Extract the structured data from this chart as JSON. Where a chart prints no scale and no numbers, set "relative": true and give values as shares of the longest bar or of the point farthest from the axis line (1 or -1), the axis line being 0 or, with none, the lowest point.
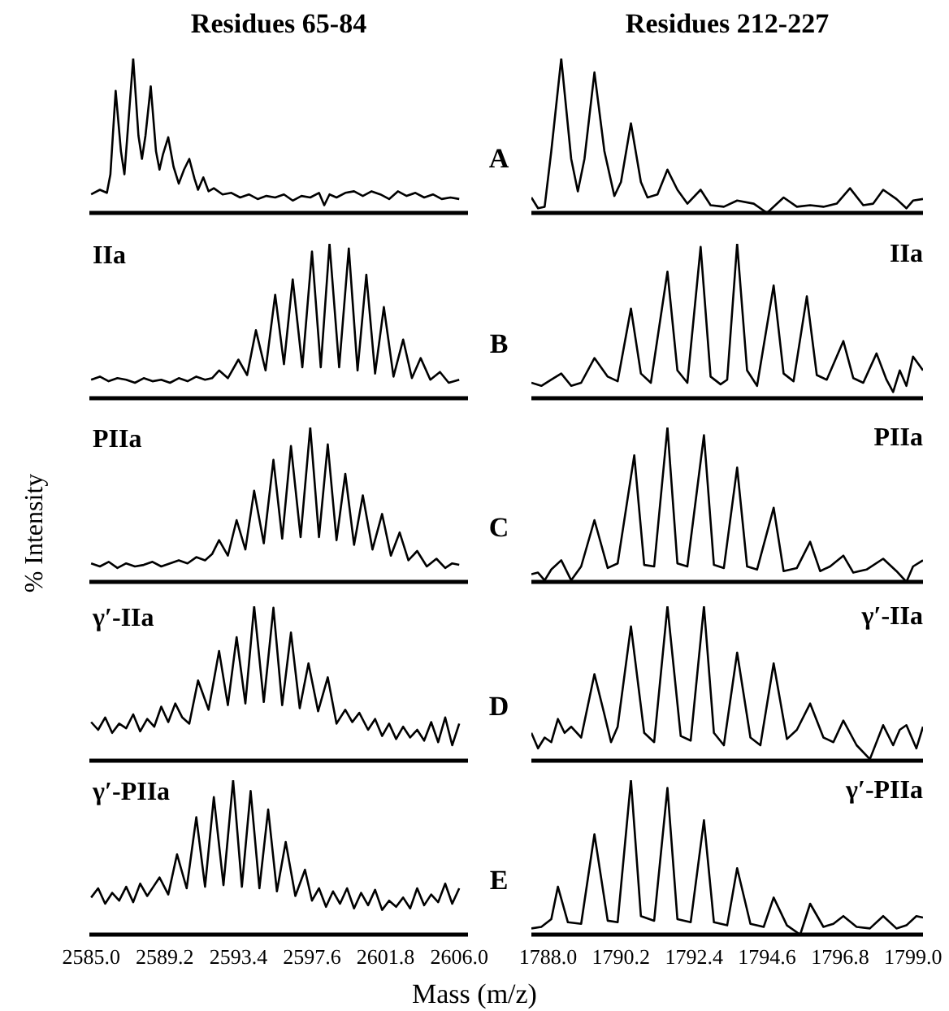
{
  "chart_data": [
    {
      "type": "line",
      "title": "Residues 65-84",
      "color": "#000000",
      "relative": true,
      "tick_labels": false,
      "xlim": [
        2584.9,
        2606.5
      ],
      "x": [
        2585,
        2585.5,
        2585.9,
        2586.1,
        2586.4,
        2586.7,
        2586.9,
        2587.1,
        2587.4,
        2587.7,
        2587.9,
        2588.1,
        2588.4,
        2588.7,
        2588.9,
        2589.1,
        2589.4,
        2589.7,
        2590,
        2590.3,
        2590.6,
        2590.9,
        2591.1,
        2591.4,
        2591.7,
        2592,
        2592.5,
        2593,
        2593.5,
        2594,
        2594.5,
        2595,
        2595.5,
        2596,
        2596.5,
        2597,
        2597.5,
        2598,
        2598.3,
        2598.6,
        2599,
        2599.5,
        2600,
        2600.5,
        2601,
        2601.5,
        2602,
        2602.5,
        2603,
        2603.5,
        2604,
        2604.5,
        2605,
        2605.5,
        2606
      ],
      "values": [
        0.12,
        0.15,
        0.13,
        0.25,
        0.79,
        0.4,
        0.25,
        0.55,
        1.0,
        0.5,
        0.35,
        0.5,
        0.82,
        0.4,
        0.28,
        0.38,
        0.49,
        0.3,
        0.19,
        0.28,
        0.35,
        0.22,
        0.15,
        0.23,
        0.14,
        0.16,
        0.12,
        0.13,
        0.1,
        0.12,
        0.09,
        0.11,
        0.1,
        0.12,
        0.08,
        0.11,
        0.1,
        0.13,
        0.05,
        0.12,
        0.1,
        0.13,
        0.14,
        0.11,
        0.14,
        0.12,
        0.09,
        0.14,
        0.11,
        0.13,
        0.1,
        0.12,
        0.09,
        0.1,
        0.09
      ]
    },
    {
      "type": "line",
      "title": "Residues 212-227",
      "annotations": [
        "A"
      ],
      "color": "#000000",
      "relative": true,
      "tick_labels": false,
      "xlim": [
        1787.5,
        1799.3
      ],
      "x": [
        1787.5,
        1787.7,
        1787.9,
        1788.1,
        1788.4,
        1788.7,
        1788.9,
        1789.1,
        1789.4,
        1789.7,
        1790,
        1790.2,
        1790.5,
        1790.8,
        1791,
        1791.3,
        1791.6,
        1791.9,
        1792.2,
        1792.6,
        1792.9,
        1793.3,
        1793.7,
        1794.2,
        1794.6,
        1795.1,
        1795.5,
        1795.9,
        1796.3,
        1796.7,
        1797.1,
        1797.5,
        1797.8,
        1798.1,
        1798.5,
        1798.8,
        1799,
        1799.3
      ],
      "values": [
        0.1,
        0.03,
        0.04,
        0.4,
        1.0,
        0.35,
        0.14,
        0.35,
        0.91,
        0.4,
        0.11,
        0.2,
        0.58,
        0.2,
        0.1,
        0.12,
        0.28,
        0.15,
        0.06,
        0.15,
        0.05,
        0.04,
        0.08,
        0.06,
        0.0,
        0.1,
        0.04,
        0.05,
        0.04,
        0.06,
        0.16,
        0.05,
        0.06,
        0.15,
        0.09,
        0.03,
        0.08,
        0.09
      ]
    },
    {
      "type": "line",
      "annotations": [
        "IIa"
      ],
      "color": "#000000",
      "relative": true,
      "tick_labels": false,
      "xlim": [
        2584.9,
        2606.5
      ],
      "x": [
        2585,
        2585.5,
        2586,
        2586.5,
        2587,
        2587.5,
        2588,
        2588.5,
        2589,
        2589.5,
        2590,
        2590.5,
        2591,
        2591.5,
        2591.9,
        2592.3,
        2592.8,
        2593.4,
        2593.9,
        2594.4,
        2594.95,
        2595.5,
        2596,
        2596.5,
        2597.05,
        2597.6,
        2598.1,
        2598.6,
        2599.15,
        2599.7,
        2600.2,
        2600.7,
        2601.2,
        2601.7,
        2602.25,
        2602.8,
        2603.3,
        2603.8,
        2604.35,
        2604.9,
        2605.4,
        2606
      ],
      "values": [
        0.12,
        0.14,
        0.11,
        0.13,
        0.12,
        0.1,
        0.13,
        0.11,
        0.12,
        0.1,
        0.13,
        0.11,
        0.14,
        0.12,
        0.13,
        0.18,
        0.13,
        0.25,
        0.15,
        0.44,
        0.18,
        0.67,
        0.22,
        0.77,
        0.2,
        0.95,
        0.2,
        1.0,
        0.2,
        0.97,
        0.18,
        0.8,
        0.16,
        0.59,
        0.14,
        0.38,
        0.13,
        0.26,
        0.12,
        0.17,
        0.1,
        0.12
      ]
    },
    {
      "type": "line",
      "annotations": [
        "B",
        "IIa"
      ],
      "color": "#000000",
      "relative": true,
      "tick_labels": false,
      "xlim": [
        1787.5,
        1799.3
      ],
      "x": [
        1787.5,
        1787.8,
        1788.1,
        1788.4,
        1788.7,
        1789,
        1789.4,
        1789.8,
        1790.1,
        1790.5,
        1790.8,
        1791.1,
        1791.6,
        1791.9,
        1792.2,
        1792.6,
        1792.9,
        1793.2,
        1793.4,
        1793.7,
        1794,
        1794.3,
        1794.8,
        1795.1,
        1795.4,
        1795.8,
        1796.1,
        1796.4,
        1796.9,
        1797.2,
        1797.5,
        1797.9,
        1798.2,
        1798.4,
        1798.6,
        1798.8,
        1799,
        1799.3
      ],
      "values": [
        0.1,
        0.08,
        0.12,
        0.16,
        0.08,
        0.1,
        0.26,
        0.14,
        0.11,
        0.58,
        0.16,
        0.1,
        0.82,
        0.18,
        0.1,
        0.98,
        0.14,
        0.09,
        0.12,
        1.0,
        0.18,
        0.08,
        0.73,
        0.16,
        0.11,
        0.66,
        0.15,
        0.12,
        0.37,
        0.13,
        0.1,
        0.29,
        0.12,
        0.04,
        0.18,
        0.08,
        0.27,
        0.18
      ]
    },
    {
      "type": "line",
      "annotations": [
        "PIIa"
      ],
      "ylabel": "% Intensity",
      "color": "#000000",
      "relative": true,
      "tick_labels": false,
      "xlim": [
        2584.9,
        2606.5
      ],
      "x": [
        2585,
        2585.5,
        2586,
        2586.5,
        2587,
        2587.5,
        2588,
        2588.5,
        2589,
        2589.5,
        2590,
        2590.5,
        2591,
        2591.5,
        2591.9,
        2592.3,
        2592.8,
        2593.3,
        2593.8,
        2594.3,
        2594.85,
        2595.4,
        2595.9,
        2596.4,
        2596.95,
        2597.5,
        2598,
        2598.5,
        2599,
        2599.5,
        2600,
        2600.5,
        2601.05,
        2601.6,
        2602.1,
        2602.6,
        2603.1,
        2603.6,
        2604.15,
        2604.7,
        2605.2,
        2605.6,
        2606
      ],
      "values": [
        0.12,
        0.1,
        0.13,
        0.09,
        0.12,
        0.1,
        0.11,
        0.13,
        0.1,
        0.12,
        0.14,
        0.12,
        0.16,
        0.14,
        0.18,
        0.27,
        0.17,
        0.4,
        0.21,
        0.59,
        0.25,
        0.79,
        0.28,
        0.88,
        0.29,
        1.0,
        0.29,
        0.89,
        0.27,
        0.7,
        0.24,
        0.56,
        0.21,
        0.44,
        0.17,
        0.32,
        0.14,
        0.2,
        0.1,
        0.15,
        0.09,
        0.12,
        0.11
      ]
    },
    {
      "type": "line",
      "annotations": [
        "C",
        "PIIa"
      ],
      "color": "#000000",
      "relative": true,
      "tick_labels": false,
      "xlim": [
        1787.5,
        1799.3
      ],
      "x": [
        1787.5,
        1787.7,
        1787.9,
        1788.1,
        1788.4,
        1788.7,
        1789,
        1789.4,
        1789.8,
        1790.1,
        1790.6,
        1790.9,
        1791.2,
        1791.6,
        1791.9,
        1792.2,
        1792.7,
        1793,
        1793.3,
        1793.7,
        1794,
        1794.3,
        1794.8,
        1795.1,
        1795.5,
        1795.9,
        1796.2,
        1796.5,
        1796.9,
        1797.2,
        1797.6,
        1798.1,
        1798.5,
        1798.8,
        1799,
        1799.3
      ],
      "values": [
        0.05,
        0.06,
        0.01,
        0.08,
        0.14,
        0.01,
        0.1,
        0.4,
        0.09,
        0.12,
        0.82,
        0.11,
        0.1,
        1.0,
        0.12,
        0.1,
        0.95,
        0.11,
        0.09,
        0.74,
        0.1,
        0.08,
        0.48,
        0.07,
        0.09,
        0.26,
        0.07,
        0.1,
        0.17,
        0.06,
        0.08,
        0.15,
        0.07,
        0.0,
        0.1,
        0.14
      ]
    },
    {
      "type": "line",
      "annotations": [
        "γ′-IIa"
      ],
      "color": "#000000",
      "relative": true,
      "tick_labels": false,
      "xlim": [
        2584.9,
        2606.5
      ],
      "x": [
        2585,
        2585.4,
        2585.8,
        2586.2,
        2586.6,
        2587,
        2587.4,
        2587.8,
        2588.2,
        2588.6,
        2589,
        2589.4,
        2589.8,
        2590.2,
        2590.6,
        2591.1,
        2591.7,
        2592.3,
        2592.8,
        2593.3,
        2593.8,
        2594.3,
        2594.85,
        2595.4,
        2595.9,
        2596.4,
        2596.9,
        2597.4,
        2597.95,
        2598.5,
        2599,
        2599.5,
        2599.9,
        2600.3,
        2600.8,
        2601.2,
        2601.6,
        2602,
        2602.4,
        2602.8,
        2603.2,
        2603.6,
        2604,
        2604.4,
        2604.8,
        2605.2,
        2605.6,
        2606
      ],
      "values": [
        0.25,
        0.2,
        0.28,
        0.18,
        0.24,
        0.21,
        0.3,
        0.19,
        0.27,
        0.22,
        0.35,
        0.25,
        0.37,
        0.28,
        0.24,
        0.52,
        0.33,
        0.71,
        0.36,
        0.8,
        0.37,
        1.0,
        0.38,
        0.99,
        0.36,
        0.83,
        0.34,
        0.63,
        0.32,
        0.54,
        0.24,
        0.33,
        0.25,
        0.31,
        0.2,
        0.27,
        0.16,
        0.24,
        0.14,
        0.22,
        0.15,
        0.2,
        0.13,
        0.25,
        0.12,
        0.28,
        0.1,
        0.24
      ]
    },
    {
      "type": "line",
      "annotations": [
        "D",
        "γ′-IIa"
      ],
      "color": "#000000",
      "relative": true,
      "tick_labels": false,
      "xlim": [
        1787.5,
        1799.3
      ],
      "x": [
        1787.5,
        1787.7,
        1787.9,
        1788.1,
        1788.3,
        1788.5,
        1788.7,
        1789,
        1789.4,
        1789.7,
        1789.9,
        1790.1,
        1790.5,
        1790.9,
        1791.2,
        1791.6,
        1792,
        1792.3,
        1792.7,
        1793,
        1793.3,
        1793.7,
        1794.1,
        1794.4,
        1794.8,
        1795.2,
        1795.5,
        1795.9,
        1796.3,
        1796.6,
        1796.9,
        1797.3,
        1797.7,
        1798.1,
        1798.4,
        1798.6,
        1798.8,
        1799.1,
        1799.3
      ],
      "values": [
        0.18,
        0.08,
        0.15,
        0.12,
        0.27,
        0.18,
        0.22,
        0.15,
        0.56,
        0.3,
        0.12,
        0.22,
        0.87,
        0.18,
        0.12,
        1.0,
        0.16,
        0.13,
        1.0,
        0.18,
        0.1,
        0.7,
        0.15,
        0.1,
        0.63,
        0.14,
        0.2,
        0.37,
        0.15,
        0.12,
        0.26,
        0.1,
        0.01,
        0.23,
        0.1,
        0.2,
        0.23,
        0.08,
        0.22
      ]
    },
    {
      "type": "line",
      "annotations": [
        "γ′-PIIa"
      ],
      "color": "#000000",
      "relative": true,
      "tick_labels": "x",
      "xlim": [
        2584.9,
        2606.5
      ],
      "xticks": [
        {
          "value": 2585,
          "label": "2585.0"
        },
        {
          "value": 2589.2,
          "label": "2589.2"
        },
        {
          "value": 2593.4,
          "label": "2593.4"
        },
        {
          "value": 2597.6,
          "label": "2597.6"
        },
        {
          "value": 2601.8,
          "label": "2601.8"
        },
        {
          "value": 2606,
          "label": "2606.0"
        }
      ],
      "x": [
        2585,
        2585.4,
        2585.8,
        2586.2,
        2586.6,
        2587,
        2587.4,
        2587.8,
        2588.2,
        2588.55,
        2588.9,
        2589.4,
        2589.9,
        2590.45,
        2591,
        2591.5,
        2592,
        2592.55,
        2593.1,
        2593.6,
        2594.1,
        2594.6,
        2595.1,
        2595.6,
        2596.1,
        2596.65,
        2597.2,
        2597.6,
        2598,
        2598.4,
        2598.8,
        2599.2,
        2599.6,
        2600,
        2600.4,
        2600.8,
        2601.2,
        2601.6,
        2602,
        2602.4,
        2602.8,
        2603.2,
        2603.6,
        2604,
        2604.4,
        2604.8,
        2605.2,
        2605.6,
        2606
      ],
      "values": [
        0.24,
        0.3,
        0.2,
        0.27,
        0.22,
        0.31,
        0.21,
        0.33,
        0.25,
        0.31,
        0.37,
        0.26,
        0.52,
        0.3,
        0.76,
        0.31,
        0.89,
        0.32,
        1.0,
        0.31,
        0.93,
        0.3,
        0.81,
        0.28,
        0.6,
        0.25,
        0.42,
        0.22,
        0.3,
        0.18,
        0.28,
        0.2,
        0.3,
        0.17,
        0.27,
        0.19,
        0.29,
        0.16,
        0.22,
        0.18,
        0.24,
        0.17,
        0.3,
        0.19,
        0.26,
        0.21,
        0.33,
        0.2,
        0.3
      ]
    },
    {
      "type": "line",
      "annotations": [
        "E",
        "γ′-PIIa"
      ],
      "xlabel": "Mass (m/z)",
      "color": "#000000",
      "relative": true,
      "tick_labels": "x",
      "xlim": [
        1787.5,
        1799.3
      ],
      "xticks": [
        {
          "value": 1788,
          "label": "1788.0"
        },
        {
          "value": 1790.2,
          "label": "1790.2"
        },
        {
          "value": 1792.4,
          "label": "1792.4"
        },
        {
          "value": 1794.6,
          "label": "1794.6"
        },
        {
          "value": 1796.8,
          "label": "1796.8"
        },
        {
          "value": 1799,
          "label": "1799.0"
        }
      ],
      "x": [
        1787.5,
        1787.8,
        1788.1,
        1788.3,
        1788.6,
        1789,
        1789.4,
        1789.8,
        1790.1,
        1790.5,
        1790.8,
        1791.2,
        1791.6,
        1791.9,
        1792.3,
        1792.7,
        1793,
        1793.4,
        1793.7,
        1794.1,
        1794.5,
        1794.8,
        1795.2,
        1795.6,
        1795.9,
        1796.3,
        1796.6,
        1796.9,
        1797.3,
        1797.7,
        1798.1,
        1798.5,
        1798.8,
        1799.1,
        1799.3
      ],
      "values": [
        0.04,
        0.05,
        0.1,
        0.31,
        0.08,
        0.07,
        0.65,
        0.09,
        0.08,
        1.0,
        0.12,
        0.09,
        0.95,
        0.1,
        0.08,
        0.74,
        0.08,
        0.06,
        0.43,
        0.07,
        0.05,
        0.24,
        0.06,
        0.0,
        0.2,
        0.05,
        0.07,
        0.12,
        0.05,
        0.04,
        0.12,
        0.04,
        0.06,
        0.12,
        0.11
      ]
    }
  ]
}
